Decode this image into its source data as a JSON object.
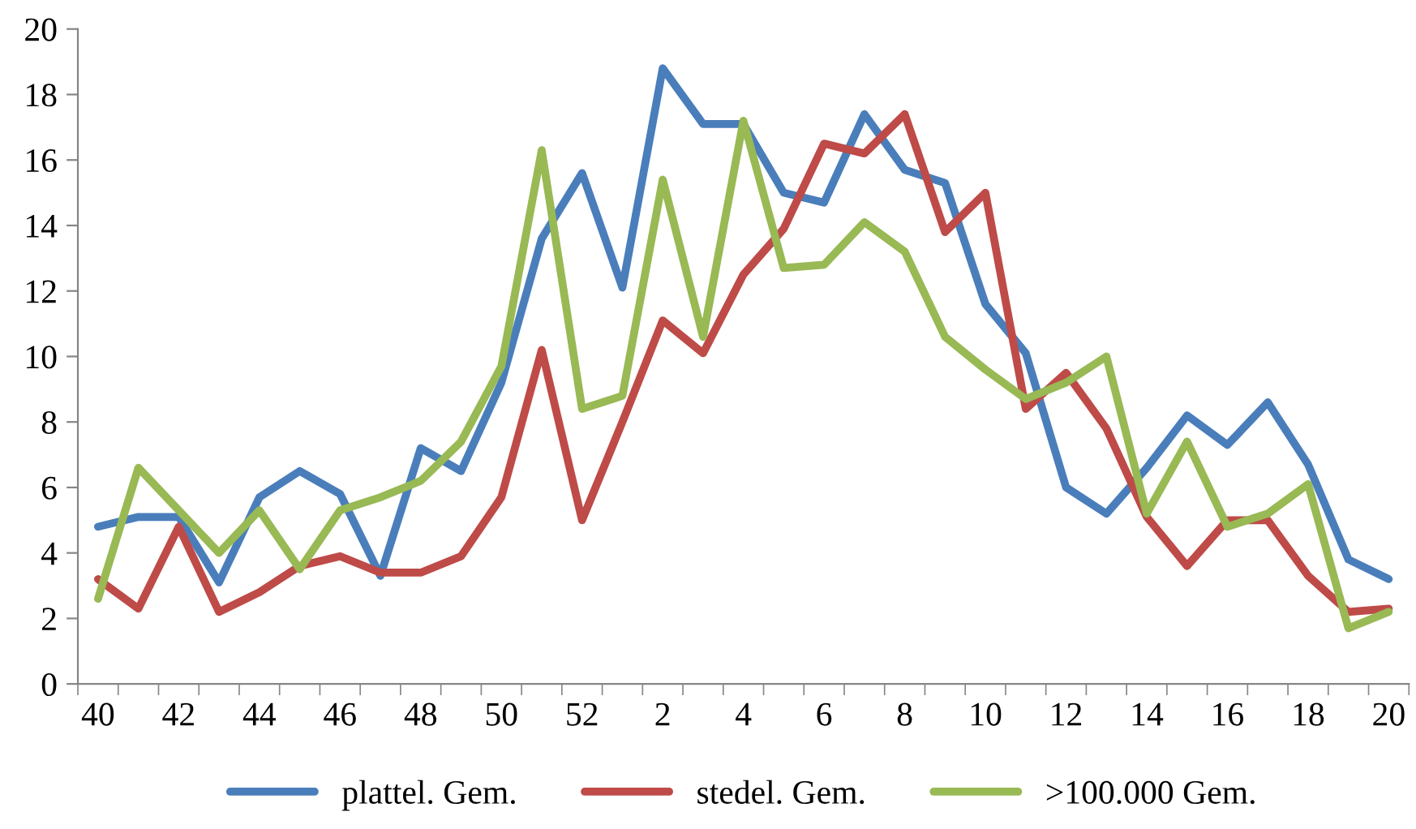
{
  "chart_data": {
    "type": "line",
    "categories": [
      "40",
      null,
      "42",
      null,
      "44",
      null,
      "46",
      null,
      "48",
      null,
      "50",
      null,
      "52",
      null,
      "2",
      null,
      "4",
      null,
      "6",
      null,
      "8",
      null,
      "10",
      null,
      "12",
      null,
      "14",
      null,
      "16",
      null,
      "18",
      null,
      "20"
    ],
    "series": [
      {
        "name": "plattel. Gem.",
        "color": "#4a7ebb",
        "values": [
          4.8,
          5.1,
          5.1,
          3.1,
          5.7,
          6.5,
          5.8,
          3.3,
          7.2,
          6.5,
          9.2,
          13.6,
          15.6,
          12.1,
          18.8,
          17.1,
          17.1,
          15.0,
          14.7,
          17.4,
          15.7,
          15.3,
          11.6,
          10.1,
          6.0,
          5.2,
          6.6,
          8.2,
          7.3,
          8.6,
          6.7,
          3.8,
          3.2
        ]
      },
      {
        "name": "stedel. Gem.",
        "color": "#be4b48",
        "values": [
          3.2,
          2.3,
          4.8,
          2.2,
          2.8,
          3.6,
          3.9,
          3.4,
          3.4,
          3.9,
          5.7,
          10.2,
          5.0,
          8.0,
          11.1,
          10.1,
          12.5,
          13.9,
          16.5,
          16.2,
          17.4,
          13.8,
          15.0,
          8.4,
          9.5,
          7.8,
          5.1,
          3.6,
          5.0,
          5.0,
          3.3,
          2.2,
          2.3
        ]
      },
      {
        "name": ">100.000 Gem.",
        "color": "#98b954",
        "values": [
          2.6,
          6.6,
          5.3,
          4.0,
          5.3,
          3.5,
          5.3,
          5.7,
          6.2,
          7.4,
          9.7,
          16.3,
          8.4,
          8.8,
          15.4,
          10.6,
          17.2,
          12.7,
          12.8,
          14.1,
          13.2,
          10.6,
          9.6,
          8.7,
          9.2,
          10.0,
          5.2,
          7.4,
          4.8,
          5.2,
          6.1,
          1.7,
          2.2
        ]
      }
    ],
    "ylim": [
      0,
      20
    ],
    "yticks": [
      0,
      2,
      4,
      6,
      8,
      10,
      12,
      14,
      16,
      18,
      20
    ],
    "grid": false,
    "legend": "bottom",
    "marker": "none",
    "line_style": "solid"
  }
}
